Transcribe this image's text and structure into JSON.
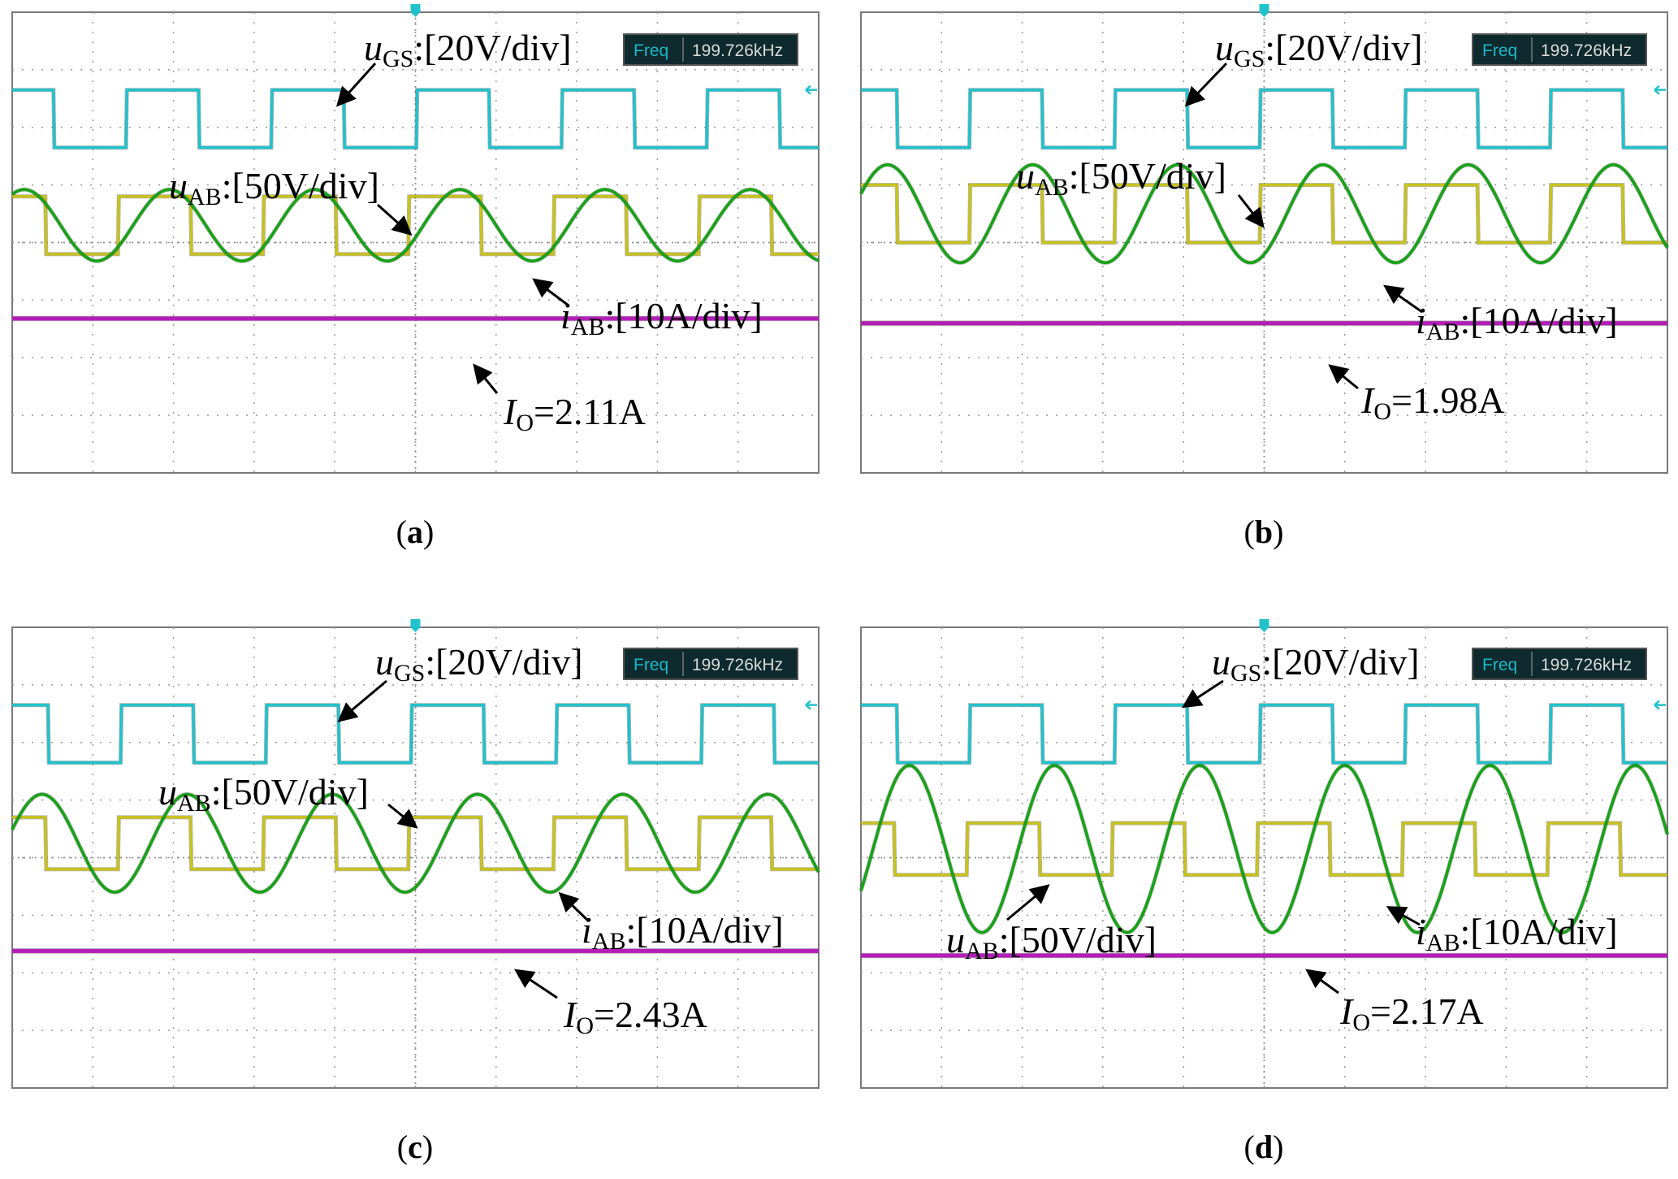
{
  "figure": {
    "panels": [
      {
        "id": "a",
        "caption": "a",
        "freq_label": "Freq",
        "freq_value": "199.726kHz",
        "ugs": {
          "sym": "u",
          "sub": "GS",
          "scale": ":[20V/div]"
        },
        "uab": {
          "sym": "u",
          "sub": "AB",
          "scale": ":[50V/div]"
        },
        "iab": {
          "sym": "i",
          "sub": "AB",
          "scale": ":[10A/div]"
        },
        "io": {
          "sym": "I",
          "sub": "O",
          "value": "=2.11A"
        }
      },
      {
        "id": "b",
        "caption": "b",
        "freq_label": "Freq",
        "freq_value": "199.726kHz",
        "ugs": {
          "sym": "u",
          "sub": "GS",
          "scale": ":[20V/div]"
        },
        "uab": {
          "sym": "u",
          "sub": "AB",
          "scale": ":[50V/div]"
        },
        "iab": {
          "sym": "i",
          "sub": "AB",
          "scale": ":[10A/div]"
        },
        "io": {
          "sym": "I",
          "sub": "O",
          "value": "=1.98A"
        }
      },
      {
        "id": "c",
        "caption": "c",
        "freq_label": "Freq",
        "freq_value": "199.726kHz",
        "ugs": {
          "sym": "u",
          "sub": "GS",
          "scale": ":[20V/div]"
        },
        "uab": {
          "sym": "u",
          "sub": "AB",
          "scale": ":[50V/div]"
        },
        "iab": {
          "sym": "i",
          "sub": "AB",
          "scale": ":[10A/div]"
        },
        "io": {
          "sym": "I",
          "sub": "O",
          "value": "=2.43A"
        }
      },
      {
        "id": "d",
        "caption": "d",
        "freq_label": "Freq",
        "freq_value": "199.726kHz",
        "ugs": {
          "sym": "u",
          "sub": "GS",
          "scale": ":[20V/div]"
        },
        "uab": {
          "sym": "u",
          "sub": "AB",
          "scale": ":[50V/div]"
        },
        "iab": {
          "sym": "i",
          "sub": "AB",
          "scale": ":[10A/div]"
        },
        "io": {
          "sym": "I",
          "sub": "O",
          "value": "=2.17A"
        }
      }
    ]
  },
  "colors": {
    "ugs": "#22c2cc",
    "uab": "#c8c21e",
    "iab": "#16a316",
    "io": "#b31eb8",
    "grid": "#9a9a9a",
    "frame": "#7a7a7a",
    "freq_box": "#0e2a2e",
    "freq_label": "#19b8c8",
    "freq_value": "#d9d9d9"
  },
  "chart_data": [
    {
      "type": "line",
      "panel": "a",
      "x_divisions": 10,
      "y_divisions": 8,
      "period_div": 1.8,
      "series": [
        {
          "name": "uGS",
          "shape": "square",
          "high_div": 1.35,
          "low_div": 2.35,
          "phase_div": -0.38
        },
        {
          "name": "uAB",
          "shape": "square",
          "high_div": 3.2,
          "low_div": 4.2,
          "phase_div": -0.48
        },
        {
          "name": "iAB",
          "shape": "sine",
          "center_div": 3.7,
          "amplitude_div": 0.62,
          "phase_div": -0.3
        },
        {
          "name": "IO",
          "shape": "dc",
          "level_div": 5.32
        }
      ]
    },
    {
      "type": "line",
      "panel": "b",
      "x_divisions": 10,
      "y_divisions": 8,
      "period_div": 1.8,
      "series": [
        {
          "name": "uGS",
          "shape": "square",
          "high_div": 1.35,
          "low_div": 2.35,
          "phase_div": -0.45
        },
        {
          "name": "uAB",
          "shape": "square",
          "high_div": 3.0,
          "low_div": 4.0,
          "phase_div": -0.45
        },
        {
          "name": "iAB",
          "shape": "sine",
          "center_div": 3.5,
          "amplitude_div": 0.85,
          "phase_div": -0.12
        },
        {
          "name": "IO",
          "shape": "dc",
          "level_div": 5.4
        }
      ]
    },
    {
      "type": "line",
      "panel": "c",
      "x_divisions": 10,
      "y_divisions": 8,
      "period_div": 1.8,
      "series": [
        {
          "name": "uGS",
          "shape": "square",
          "high_div": 1.35,
          "low_div": 2.35,
          "phase_div": -0.45
        },
        {
          "name": "uAB",
          "shape": "square",
          "high_div": 3.3,
          "low_div": 4.2,
          "phase_div": -0.48
        },
        {
          "name": "iAB",
          "shape": "sine",
          "center_div": 3.75,
          "amplitude_div": 0.85,
          "phase_div": -0.08
        },
        {
          "name": "IO",
          "shape": "dc",
          "level_div": 5.62
        }
      ]
    },
    {
      "type": "line",
      "panel": "d",
      "x_divisions": 10,
      "y_divisions": 8,
      "period_div": 1.8,
      "series": [
        {
          "name": "uGS",
          "shape": "square",
          "high_div": 1.35,
          "low_div": 2.35,
          "phase_div": -0.45
        },
        {
          "name": "uAB",
          "shape": "square",
          "high_div": 3.4,
          "low_div": 4.3,
          "phase_div": -0.48
        },
        {
          "name": "iAB",
          "shape": "sine",
          "center_div": 3.85,
          "amplitude_div": 1.45,
          "phase_div": 0.15
        },
        {
          "name": "IO",
          "shape": "dc",
          "level_div": 5.7
        }
      ]
    }
  ]
}
